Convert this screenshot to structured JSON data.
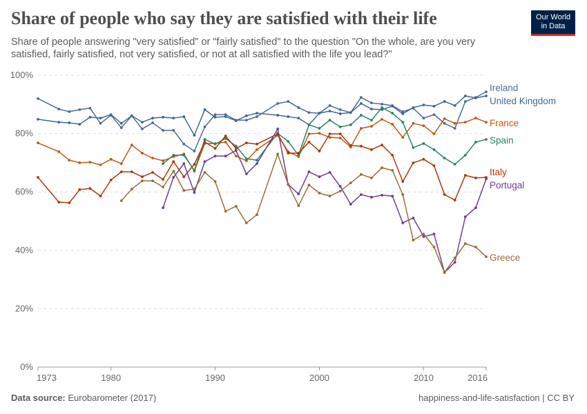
{
  "header": {
    "title": "Share of people who say they are satisfied with their life",
    "subtitle": "Share of people answering \"very satisfied\" or \"fairly satisfied\" to the question \"On the whole, are you very satisfied, fairly satisfied, not very satisfied, or not at all satisfied with the life you lead?\"",
    "logo_line1": "Our World",
    "logo_line2": "in Data"
  },
  "footer": {
    "source_label": "Data source:",
    "source_value": "Eurobarometer (2017)",
    "right": "happiness-and-life-satisfaction | CC BY"
  },
  "chart_data": {
    "type": "line",
    "title": "Share of people who say they are satisfied with their life",
    "xlabel": "",
    "ylabel": "",
    "xlim": [
      1973,
      2016
    ],
    "ylim": [
      0,
      100
    ],
    "grid": true,
    "legend": "right-end-labels",
    "y_ticks": [
      "0%",
      "20%",
      "40%",
      "60%",
      "80%",
      "100%"
    ],
    "y_tick_values": [
      0,
      20,
      40,
      60,
      80,
      100
    ],
    "x_ticks": [
      "1973",
      "1980",
      "1990",
      "2000",
      "2010",
      "2016"
    ],
    "x_tick_values": [
      1973,
      1980,
      1990,
      2000,
      2010,
      2016
    ],
    "series": [
      {
        "name": "Ireland",
        "color": "#4c6a9c",
        "years": [
          1973,
          1975,
          1976,
          1977,
          1978,
          1979,
          1980,
          1981,
          1982,
          1983,
          1984,
          1985,
          1986,
          1987,
          1988,
          1989,
          1990,
          1991,
          1992,
          1993,
          1994,
          1996,
          1997,
          1998,
          1999,
          2000,
          2001,
          2002,
          2003,
          2004,
          2005,
          2006,
          2007,
          2008,
          2009,
          2010,
          2011,
          2012,
          2013,
          2014,
          2015,
          2016
        ],
        "values": [
          92.0,
          88.4,
          87.5,
          88.2,
          88.7,
          83.5,
          86.3,
          82.0,
          86.1,
          81.6,
          83.7,
          81.1,
          81.1,
          76.4,
          74.0,
          82.3,
          86.5,
          86.5,
          84.6,
          84.6,
          85.8,
          90.3,
          91.0,
          88.9,
          87.2,
          87.0,
          89.6,
          88.2,
          87.2,
          92.4,
          90.5,
          90.1,
          89.6,
          87.5,
          88.7,
          85.3,
          86.5,
          83.5,
          81.8,
          91.0,
          92.4,
          94.3
        ]
      },
      {
        "name": "United Kingdom",
        "color": "#3f6797",
        "years": [
          1973,
          1975,
          1976,
          1977,
          1978,
          1979,
          1980,
          1981,
          1982,
          1983,
          1984,
          1985,
          1986,
          1987,
          1988,
          1989,
          1990,
          1991,
          1992,
          1993,
          1994,
          1996,
          1997,
          1998,
          1999,
          2000,
          2001,
          2002,
          2003,
          2004,
          2005,
          2006,
          2007,
          2008,
          2009,
          2010,
          2011,
          2012,
          2013,
          2014,
          2015,
          2016
        ],
        "values": [
          84.9,
          83.9,
          83.7,
          83.2,
          85.6,
          85.3,
          86.5,
          83.5,
          86.1,
          83.9,
          85.3,
          85.6,
          85.3,
          85.8,
          79.4,
          88.2,
          85.6,
          85.8,
          84.4,
          86.1,
          87.0,
          86.3,
          85.8,
          85.3,
          83.0,
          87.0,
          87.7,
          86.8,
          87.2,
          90.3,
          88.4,
          88.2,
          89.4,
          86.8,
          88.9,
          89.8,
          89.4,
          91.0,
          89.6,
          92.9,
          92.2,
          92.9
        ]
      },
      {
        "name": "France",
        "color": "#be5915",
        "years": [
          1973,
          1975,
          1976,
          1977,
          1978,
          1979,
          1980,
          1981,
          1982,
          1983,
          1984,
          1985,
          1986,
          1987,
          1988,
          1989,
          1990,
          1991,
          1992,
          1993,
          1994,
          1996,
          1997,
          1998,
          1999,
          2000,
          2001,
          2002,
          2003,
          2004,
          2005,
          2006,
          2007,
          2008,
          2009,
          2010,
          2011,
          2012,
          2013,
          2014,
          2015,
          2016
        ],
        "values": [
          76.8,
          73.8,
          70.9,
          70.0,
          70.2,
          69.3,
          71.2,
          69.7,
          76.1,
          73.3,
          71.6,
          70.7,
          72.1,
          73.0,
          67.1,
          76.6,
          76.6,
          77.1,
          72.3,
          70.7,
          74.5,
          79.4,
          73.8,
          72.1,
          79.9,
          80.1,
          78.7,
          78.5,
          75.4,
          81.8,
          82.5,
          84.9,
          83.2,
          78.7,
          83.5,
          82.7,
          79.9,
          85.1,
          83.5,
          83.9,
          85.3,
          83.9
        ]
      },
      {
        "name": "Spain",
        "color": "#2c8465",
        "years": [
          1985,
          1986,
          1987,
          1988,
          1989,
          1990,
          1991,
          1992,
          1993,
          1994,
          1996,
          1997,
          1998,
          1999,
          2000,
          2001,
          2002,
          2003,
          2004,
          2005,
          2006,
          2007,
          2008,
          2009,
          2010,
          2011,
          2012,
          2013,
          2014,
          2015,
          2016
        ],
        "values": [
          69.7,
          72.6,
          72.6,
          67.4,
          78.0,
          76.4,
          78.3,
          75.7,
          71.4,
          70.9,
          80.1,
          77.3,
          72.6,
          83.0,
          81.8,
          84.6,
          82.3,
          83.0,
          86.3,
          84.6,
          88.9,
          87.0,
          83.9,
          75.2,
          76.6,
          74.5,
          71.6,
          69.5,
          72.6,
          77.1,
          78.0
        ]
      },
      {
        "name": "Italy",
        "color": "#b13507",
        "years": [
          1973,
          1975,
          1976,
          1977,
          1978,
          1979,
          1980,
          1981,
          1982,
          1983,
          1984,
          1985,
          1986,
          1987,
          1988,
          1989,
          1990,
          1991,
          1992,
          1993,
          1994,
          1996,
          1997,
          1998,
          1999,
          2000,
          2001,
          2002,
          2003,
          2004,
          2005,
          2006,
          2007,
          2008,
          2009,
          2010,
          2011,
          2012,
          2013,
          2014,
          2015,
          2016
        ],
        "values": [
          65.0,
          56.5,
          56.3,
          60.8,
          61.2,
          58.6,
          64.1,
          66.9,
          66.9,
          65.2,
          66.7,
          64.3,
          70.4,
          65.2,
          69.5,
          77.1,
          74.9,
          79.2,
          74.9,
          76.8,
          76.4,
          79.9,
          73.3,
          73.3,
          77.1,
          74.0,
          79.9,
          79.9,
          75.9,
          75.7,
          74.5,
          76.1,
          72.6,
          63.6,
          70.0,
          71.2,
          69.0,
          59.1,
          57.2,
          65.7,
          64.8,
          65.0
        ]
      },
      {
        "name": "Portugal",
        "color": "#6d3e91",
        "years": [
          1985,
          1986,
          1987,
          1988,
          1989,
          1990,
          1991,
          1992,
          1993,
          1994,
          1996,
          1997,
          1998,
          1999,
          2000,
          2001,
          2002,
          2003,
          2004,
          2005,
          2006,
          2007,
          2008,
          2009,
          2010,
          2011,
          2012,
          2013,
          2014,
          2015,
          2016
        ],
        "values": [
          54.6,
          65.0,
          69.7,
          59.8,
          70.4,
          72.3,
          72.3,
          74.2,
          66.2,
          69.7,
          81.6,
          62.6,
          59.3,
          66.9,
          65.2,
          66.7,
          61.9,
          55.8,
          59.1,
          58.2,
          58.9,
          58.6,
          49.4,
          51.1,
          44.7,
          45.6,
          32.4,
          35.9,
          51.5,
          54.6,
          64.5
        ]
      },
      {
        "name": "Greece",
        "color": "#996d39",
        "years": [
          1981,
          1982,
          1983,
          1984,
          1985,
          1986,
          1987,
          1988,
          1989,
          1990,
          1991,
          1992,
          1993,
          1994,
          1996,
          1997,
          1998,
          1999,
          2000,
          2001,
          2002,
          2003,
          2004,
          2005,
          2006,
          2007,
          2008,
          2009,
          2010,
          2011,
          2012,
          2013,
          2014,
          2015,
          2016
        ],
        "values": [
          57.0,
          61.0,
          63.8,
          63.8,
          61.7,
          67.1,
          60.5,
          61.0,
          66.7,
          63.6,
          53.4,
          55.1,
          49.4,
          52.2,
          73.0,
          62.6,
          55.3,
          62.4,
          59.6,
          58.6,
          60.3,
          63.1,
          66.0,
          64.8,
          68.3,
          67.4,
          59.1,
          43.5,
          45.6,
          41.1,
          32.4,
          37.4,
          42.3,
          41.1,
          37.8
        ]
      }
    ]
  }
}
